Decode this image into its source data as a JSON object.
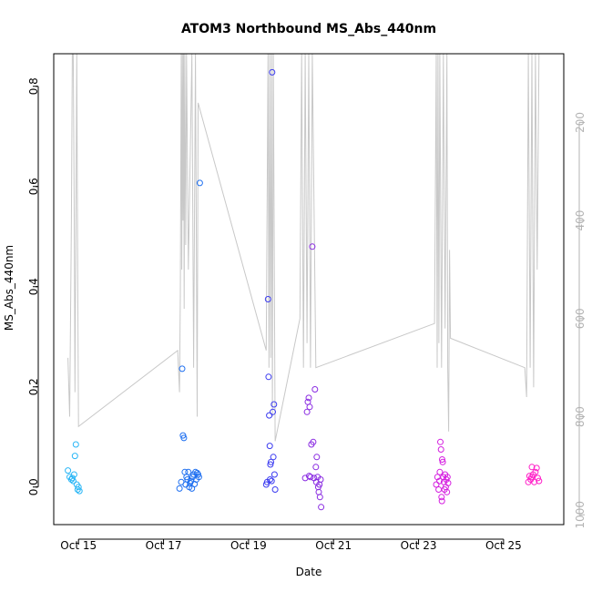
{
  "chart_data": {
    "type": "scatter",
    "title": "ATOM3 Northbound MS_Abs_440nm",
    "xlabel": "Date",
    "ylabel": "MS_Abs_440nm",
    "x_type": "date",
    "xlim": [
      "2016-10-14T10:00",
      "2016-10-26T10:00"
    ],
    "ylim": [
      -0.075,
      0.865
    ],
    "x_ticks": [
      {
        "x": "2016-10-15",
        "label": "Oct 15"
      },
      {
        "x": "2016-10-17",
        "label": "Oct 17"
      },
      {
        "x": "2016-10-19",
        "label": "Oct 19"
      },
      {
        "x": "2016-10-21",
        "label": "Oct 21"
      },
      {
        "x": "2016-10-23",
        "label": "Oct 23"
      },
      {
        "x": "2016-10-25",
        "label": "Oct 25"
      }
    ],
    "y_ticks": [
      0.0,
      0.2,
      0.4,
      0.6,
      0.8
    ],
    "y_tick_labels": [
      "0.0",
      "0.2",
      "0.4",
      "0.6",
      "0.8"
    ],
    "y2": {
      "label": "",
      "scale": "reversed",
      "range": [
        1020,
        60
      ],
      "ticks": [
        200,
        400,
        600,
        800,
        1000
      ],
      "tick_labels": [
        "200",
        "400",
        "600",
        "800",
        "1000"
      ],
      "color": "#b3b3b3"
    },
    "grid": false,
    "legend": "none",
    "points": [
      {
        "x": "2016-10-14T18:00",
        "y": 0.033,
        "color": "#29b6f6"
      },
      {
        "x": "2016-10-14T19:00",
        "y": 0.02,
        "color": "#29b6f6"
      },
      {
        "x": "2016-10-14T20:00",
        "y": 0.015,
        "color": "#29b6f6"
      },
      {
        "x": "2016-10-14T21:00",
        "y": 0.012,
        "color": "#29b6f6"
      },
      {
        "x": "2016-10-14T21:30",
        "y": 0.025,
        "color": "#29b6f6"
      },
      {
        "x": "2016-10-14T22:00",
        "y": 0.062,
        "color": "#29b6f6"
      },
      {
        "x": "2016-10-14T22:30",
        "y": 0.085,
        "color": "#29b6f6"
      },
      {
        "x": "2016-10-14T23:00",
        "y": 0.005,
        "color": "#29b6f6"
      },
      {
        "x": "2016-10-14T23:30",
        "y": -0.005,
        "color": "#29b6f6"
      },
      {
        "x": "2016-10-15T00:00",
        "y": 0.0,
        "color": "#29b6f6"
      },
      {
        "x": "2016-10-15T00:30",
        "y": -0.008,
        "color": "#29b6f6"
      },
      {
        "x": "2016-10-14T20:30",
        "y": 0.018,
        "color": "#29b6f6"
      },
      {
        "x": "2016-10-17T09:00",
        "y": -0.003,
        "color": "#1e6ff0"
      },
      {
        "x": "2016-10-17T10:00",
        "y": 0.01,
        "color": "#1e6ff0"
      },
      {
        "x": "2016-10-17T10:30",
        "y": 0.236,
        "color": "#1e6ff0"
      },
      {
        "x": "2016-10-17T11:00",
        "y": 0.103,
        "color": "#1e6ff0"
      },
      {
        "x": "2016-10-17T11:30",
        "y": 0.098,
        "color": "#1e6ff0"
      },
      {
        "x": "2016-10-17T12:00",
        "y": 0.03,
        "color": "#1e6ff0"
      },
      {
        "x": "2016-10-17T12:30",
        "y": 0.005,
        "color": "#1e6ff0"
      },
      {
        "x": "2016-10-17T13:00",
        "y": 0.02,
        "color": "#1e6ff0"
      },
      {
        "x": "2016-10-17T13:30",
        "y": 0.015,
        "color": "#1e6ff0"
      },
      {
        "x": "2016-10-17T14:00",
        "y": 0.03,
        "color": "#1e6ff0"
      },
      {
        "x": "2016-10-17T14:30",
        "y": 0.0,
        "color": "#1e6ff0"
      },
      {
        "x": "2016-10-17T15:00",
        "y": 0.008,
        "color": "#1e6ff0"
      },
      {
        "x": "2016-10-17T15:30",
        "y": 0.012,
        "color": "#1e6ff0"
      },
      {
        "x": "2016-10-17T16:00",
        "y": -0.003,
        "color": "#1e6ff0"
      },
      {
        "x": "2016-10-17T16:30",
        "y": 0.02,
        "color": "#1e6ff0"
      },
      {
        "x": "2016-10-17T17:00",
        "y": 0.025,
        "color": "#1e6ff0"
      },
      {
        "x": "2016-10-17T17:30",
        "y": 0.006,
        "color": "#1e6ff0"
      },
      {
        "x": "2016-10-17T18:00",
        "y": 0.03,
        "color": "#1e6ff0"
      },
      {
        "x": "2016-10-17T18:30",
        "y": 0.015,
        "color": "#1e6ff0"
      },
      {
        "x": "2016-10-17T19:00",
        "y": 0.028,
        "color": "#1e6ff0"
      },
      {
        "x": "2016-10-17T19:30",
        "y": 0.025,
        "color": "#1e6ff0"
      },
      {
        "x": "2016-10-17T20:00",
        "y": 0.02,
        "color": "#1e6ff0"
      },
      {
        "x": "2016-10-17T20:30",
        "y": 0.607,
        "color": "#1e6ff0"
      },
      {
        "x": "2016-10-19T10:00",
        "y": 0.005,
        "color": "#3c3cf0"
      },
      {
        "x": "2016-10-19T10:30",
        "y": 0.01,
        "color": "#3c3cf0"
      },
      {
        "x": "2016-10-19T11:00",
        "y": 0.375,
        "color": "#3c3cf0"
      },
      {
        "x": "2016-10-19T11:20",
        "y": 0.22,
        "color": "#3c3cf0"
      },
      {
        "x": "2016-10-19T11:40",
        "y": 0.143,
        "color": "#3c3cf0"
      },
      {
        "x": "2016-10-19T12:00",
        "y": 0.082,
        "color": "#3c3cf0"
      },
      {
        "x": "2016-10-19T12:20",
        "y": 0.045,
        "color": "#3c3cf0"
      },
      {
        "x": "2016-10-19T12:40",
        "y": 0.05,
        "color": "#3c3cf0"
      },
      {
        "x": "2016-10-19T13:00",
        "y": 0.012,
        "color": "#3c3cf0"
      },
      {
        "x": "2016-10-19T13:20",
        "y": 0.828,
        "color": "#3c3cf0"
      },
      {
        "x": "2016-10-19T13:40",
        "y": 0.15,
        "color": "#3c3cf0"
      },
      {
        "x": "2016-10-19T14:00",
        "y": 0.06,
        "color": "#3c3cf0"
      },
      {
        "x": "2016-10-19T14:20",
        "y": 0.165,
        "color": "#3c3cf0"
      },
      {
        "x": "2016-10-19T14:40",
        "y": 0.025,
        "color": "#3c3cf0"
      },
      {
        "x": "2016-10-19T15:00",
        "y": -0.005,
        "color": "#3c3cf0"
      },
      {
        "x": "2016-10-19T12:10",
        "y": 0.015,
        "color": "#3c3cf0"
      },
      {
        "x": "2016-10-20T08:00",
        "y": 0.018,
        "color": "#8a2be2"
      },
      {
        "x": "2016-10-20T09:00",
        "y": 0.15,
        "color": "#8a2be2"
      },
      {
        "x": "2016-10-20T09:30",
        "y": 0.17,
        "color": "#8a2be2"
      },
      {
        "x": "2016-10-20T10:00",
        "y": 0.178,
        "color": "#8a2be2"
      },
      {
        "x": "2016-10-20T10:30",
        "y": 0.16,
        "color": "#8a2be2"
      },
      {
        "x": "2016-10-20T11:00",
        "y": 0.02,
        "color": "#8a2be2"
      },
      {
        "x": "2016-10-20T11:30",
        "y": 0.085,
        "color": "#8a2be2"
      },
      {
        "x": "2016-10-20T12:00",
        "y": 0.48,
        "color": "#8a2be2"
      },
      {
        "x": "2016-10-20T12:30",
        "y": 0.09,
        "color": "#8a2be2"
      },
      {
        "x": "2016-10-20T13:00",
        "y": 0.018,
        "color": "#8a2be2"
      },
      {
        "x": "2016-10-20T13:30",
        "y": 0.195,
        "color": "#8a2be2"
      },
      {
        "x": "2016-10-20T14:00",
        "y": 0.04,
        "color": "#8a2be2"
      },
      {
        "x": "2016-10-20T14:30",
        "y": 0.06,
        "color": "#8a2be2"
      },
      {
        "x": "2016-10-20T15:00",
        "y": 0.02,
        "color": "#8a2be2"
      },
      {
        "x": "2016-10-20T15:20",
        "y": 0.0,
        "color": "#8a2be2"
      },
      {
        "x": "2016-10-20T15:40",
        "y": -0.01,
        "color": "#8a2be2"
      },
      {
        "x": "2016-10-20T16:00",
        "y": 0.005,
        "color": "#8a2be2"
      },
      {
        "x": "2016-10-20T16:20",
        "y": -0.02,
        "color": "#8a2be2"
      },
      {
        "x": "2016-10-20T16:40",
        "y": 0.015,
        "color": "#8a2be2"
      },
      {
        "x": "2016-10-20T17:00",
        "y": -0.04,
        "color": "#8a2be2"
      },
      {
        "x": "2016-10-20T10:15",
        "y": 0.022,
        "color": "#8a2be2"
      },
      {
        "x": "2016-10-20T14:15",
        "y": 0.01,
        "color": "#8a2be2"
      },
      {
        "x": "2016-10-23T10:00",
        "y": 0.005,
        "color": "#d51fe0"
      },
      {
        "x": "2016-10-23T10:40",
        "y": 0.02,
        "color": "#d51fe0"
      },
      {
        "x": "2016-10-23T11:20",
        "y": -0.005,
        "color": "#d51fe0"
      },
      {
        "x": "2016-10-23T12:00",
        "y": 0.03,
        "color": "#d51fe0"
      },
      {
        "x": "2016-10-23T12:20",
        "y": 0.09,
        "color": "#d51fe0"
      },
      {
        "x": "2016-10-23T12:40",
        "y": 0.075,
        "color": "#d51fe0"
      },
      {
        "x": "2016-10-23T13:00",
        "y": -0.02,
        "color": "#d51fe0"
      },
      {
        "x": "2016-10-23T13:20",
        "y": 0.055,
        "color": "#d51fe0"
      },
      {
        "x": "2016-10-23T13:40",
        "y": 0.05,
        "color": "#d51fe0"
      },
      {
        "x": "2016-10-23T14:00",
        "y": 0.02,
        "color": "#d51fe0"
      },
      {
        "x": "2016-10-23T14:20",
        "y": 0.01,
        "color": "#d51fe0"
      },
      {
        "x": "2016-10-23T14:40",
        "y": -0.005,
        "color": "#d51fe0"
      },
      {
        "x": "2016-10-23T15:00",
        "y": 0.025,
        "color": "#d51fe0"
      },
      {
        "x": "2016-10-23T15:20",
        "y": 0.0,
        "color": "#d51fe0"
      },
      {
        "x": "2016-10-23T15:40",
        "y": 0.015,
        "color": "#d51fe0"
      },
      {
        "x": "2016-10-23T16:00",
        "y": -0.01,
        "color": "#d51fe0"
      },
      {
        "x": "2016-10-23T16:20",
        "y": 0.02,
        "color": "#d51fe0"
      },
      {
        "x": "2016-10-23T16:40",
        "y": 0.008,
        "color": "#d51fe0"
      },
      {
        "x": "2016-10-23T13:10",
        "y": -0.028,
        "color": "#d51fe0"
      },
      {
        "x": "2016-10-23T11:50",
        "y": 0.012,
        "color": "#d51fe0"
      },
      {
        "x": "2016-10-25T14:00",
        "y": 0.01,
        "color": "#ff1fc8"
      },
      {
        "x": "2016-10-25T14:40",
        "y": 0.022,
        "color": "#ff1fc8"
      },
      {
        "x": "2016-10-25T15:20",
        "y": 0.015,
        "color": "#ff1fc8"
      },
      {
        "x": "2016-10-25T16:00",
        "y": 0.04,
        "color": "#ff1fc8"
      },
      {
        "x": "2016-10-25T16:40",
        "y": 0.025,
        "color": "#ff1fc8"
      },
      {
        "x": "2016-10-25T17:20",
        "y": 0.01,
        "color": "#ff1fc8"
      },
      {
        "x": "2016-10-25T18:00",
        "y": 0.03,
        "color": "#ff1fc8"
      },
      {
        "x": "2016-10-25T18:40",
        "y": 0.038,
        "color": "#ff1fc8"
      },
      {
        "x": "2016-10-25T19:20",
        "y": 0.018,
        "color": "#ff1fc8"
      },
      {
        "x": "2016-10-25T20:00",
        "y": 0.012,
        "color": "#ff1fc8"
      },
      {
        "x": "2016-10-25T15:50",
        "y": 0.02,
        "color": "#ff1fc8"
      }
    ],
    "altitude_series": {
      "color": "#c8c8c8",
      "points": [
        [
          "2016-10-14T18:00",
          680
        ],
        [
          "2016-10-14T19:00",
          800
        ],
        [
          "2016-10-14T20:00",
          400
        ],
        [
          "2016-10-14T20:30",
          60
        ],
        [
          "2016-10-14T21:00",
          60
        ],
        [
          "2016-10-14T21:30",
          350
        ],
        [
          "2016-10-14T22:00",
          750
        ],
        [
          "2016-10-14T23:00",
          60
        ],
        [
          "2016-10-14T23:30",
          500
        ],
        [
          "2016-10-15T00:00",
          820
        ],
        [
          "2016-10-17T08:00",
          665
        ],
        [
          "2016-10-17T09:00",
          750
        ],
        [
          "2016-10-17T09:30",
          550
        ],
        [
          "2016-10-17T10:00",
          60
        ],
        [
          "2016-10-17T10:20",
          500
        ],
        [
          "2016-10-17T10:40",
          60
        ],
        [
          "2016-10-17T11:00",
          400
        ],
        [
          "2016-10-17T11:20",
          60
        ],
        [
          "2016-10-17T11:40",
          580
        ],
        [
          "2016-10-17T12:00",
          60
        ],
        [
          "2016-10-17T12:30",
          450
        ],
        [
          "2016-10-17T13:00",
          60
        ],
        [
          "2016-10-17T14:00",
          500
        ],
        [
          "2016-10-17T16:00",
          60
        ],
        [
          "2016-10-17T17:00",
          700
        ],
        [
          "2016-10-17T18:00",
          60
        ],
        [
          "2016-10-17T19:00",
          800
        ],
        [
          "2016-10-17T19:30",
          160
        ],
        [
          "2016-10-19T10:00",
          665
        ],
        [
          "2016-10-19T11:00",
          60
        ],
        [
          "2016-10-19T11:30",
          700
        ],
        [
          "2016-10-19T12:00",
          60
        ],
        [
          "2016-10-19T12:30",
          680
        ],
        [
          "2016-10-19T13:00",
          60
        ],
        [
          "2016-10-19T13:30",
          800
        ],
        [
          "2016-10-19T14:00",
          60
        ],
        [
          "2016-10-19T15:00",
          850
        ],
        [
          "2016-10-20T05:00",
          600
        ],
        [
          "2016-10-20T06:00",
          60
        ],
        [
          "2016-10-20T07:00",
          700
        ],
        [
          "2016-10-20T08:00",
          60
        ],
        [
          "2016-10-20T09:00",
          650
        ],
        [
          "2016-10-20T10:00",
          60
        ],
        [
          "2016-10-20T11:00",
          700
        ],
        [
          "2016-10-20T12:00",
          60
        ],
        [
          "2016-10-20T14:00",
          700
        ],
        [
          "2016-10-23T09:00",
          610
        ],
        [
          "2016-10-23T10:00",
          60
        ],
        [
          "2016-10-23T10:30",
          700
        ],
        [
          "2016-10-23T11:00",
          60
        ],
        [
          "2016-10-23T11:30",
          650
        ],
        [
          "2016-10-23T12:00",
          60
        ],
        [
          "2016-10-23T13:00",
          700
        ],
        [
          "2016-10-23T14:00",
          60
        ],
        [
          "2016-10-23T15:00",
          620
        ],
        [
          "2016-10-23T16:00",
          60
        ],
        [
          "2016-10-23T16:30",
          700
        ],
        [
          "2016-10-23T17:00",
          830
        ],
        [
          "2016-10-23T17:30",
          460
        ],
        [
          "2016-10-23T18:00",
          640
        ],
        [
          "2016-10-25T12:00",
          700
        ],
        [
          "2016-10-25T13:00",
          760
        ],
        [
          "2016-10-25T14:00",
          60
        ],
        [
          "2016-10-25T15:00",
          700
        ],
        [
          "2016-10-25T16:00",
          60
        ],
        [
          "2016-10-25T17:00",
          740
        ],
        [
          "2016-10-25T18:00",
          60
        ],
        [
          "2016-10-25T19:00",
          500
        ],
        [
          "2016-10-25T20:00",
          60
        ]
      ]
    }
  }
}
